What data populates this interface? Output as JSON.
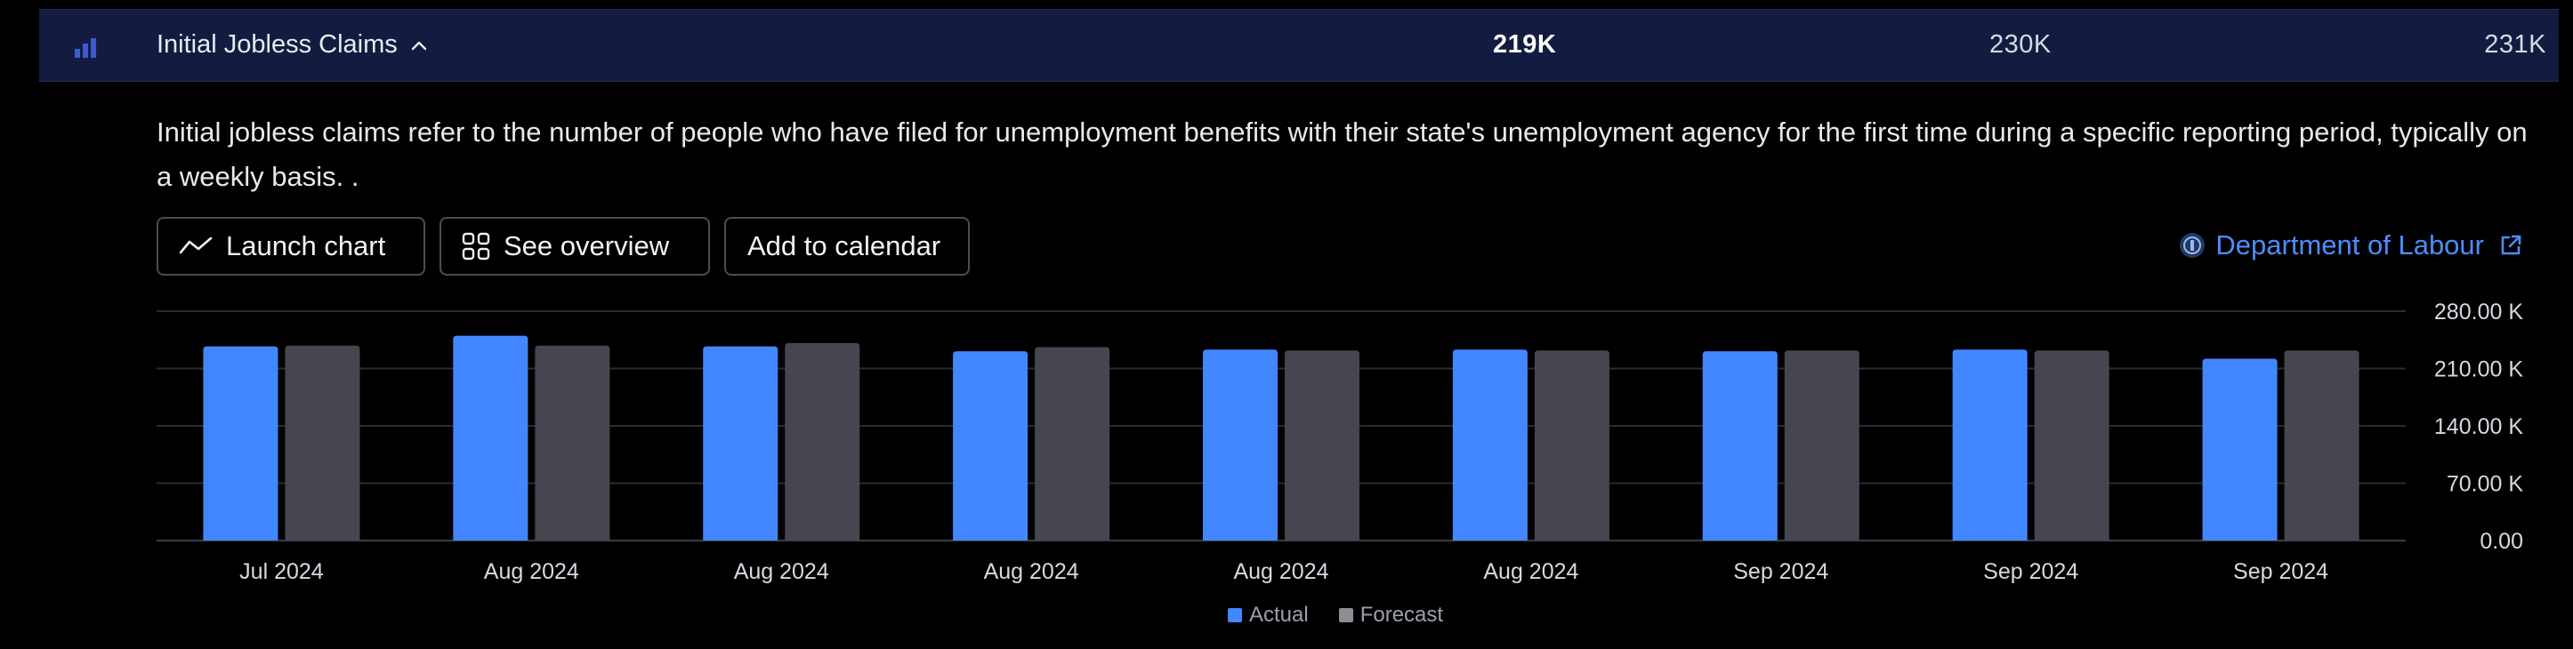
{
  "header": {
    "icon": "bar-chart-icon",
    "title": "Initial Jobless Claims",
    "actual": "219K",
    "forecast": "230K",
    "previous": "231K"
  },
  "description": "Initial jobless claims refer to the number of people who have filed for unemployment benefits with their state's unemployment agency for the first time during a specific reporting period, typically on a weekly basis. .",
  "buttons": {
    "launch_chart": "Launch chart",
    "see_overview": "See overview",
    "add_to_calendar": "Add to calendar"
  },
  "source": {
    "label": "Department of Labour"
  },
  "colors": {
    "actual": "#4287ff",
    "forecast": "#45464f",
    "header_bg": "#131c40",
    "link": "#4c8dff"
  },
  "chart_data": {
    "type": "bar",
    "categories": [
      "Jul 2024",
      "Aug 2024",
      "Aug 2024",
      "Aug 2024",
      "Aug 2024",
      "Aug 2024",
      "Sep 2024",
      "Sep 2024",
      "Sep 2024"
    ],
    "series": [
      {
        "name": "Actual",
        "values": [
          237,
          250,
          237,
          231,
          233,
          233,
          231,
          233,
          222
        ]
      },
      {
        "name": "Forecast",
        "values": [
          238,
          238,
          241,
          236,
          232,
          232,
          232,
          232,
          232
        ]
      }
    ],
    "unit": "K",
    "ylim": [
      0,
      280
    ],
    "yticks": [
      0,
      70,
      140,
      210,
      280
    ],
    "ytick_labels": [
      "0.00",
      "70.00 K",
      "140.00 K",
      "210.00 K",
      "280.00 K"
    ],
    "legend": [
      "Actual",
      "Forecast"
    ],
    "legend_position": "bottom-center",
    "grid": true
  }
}
